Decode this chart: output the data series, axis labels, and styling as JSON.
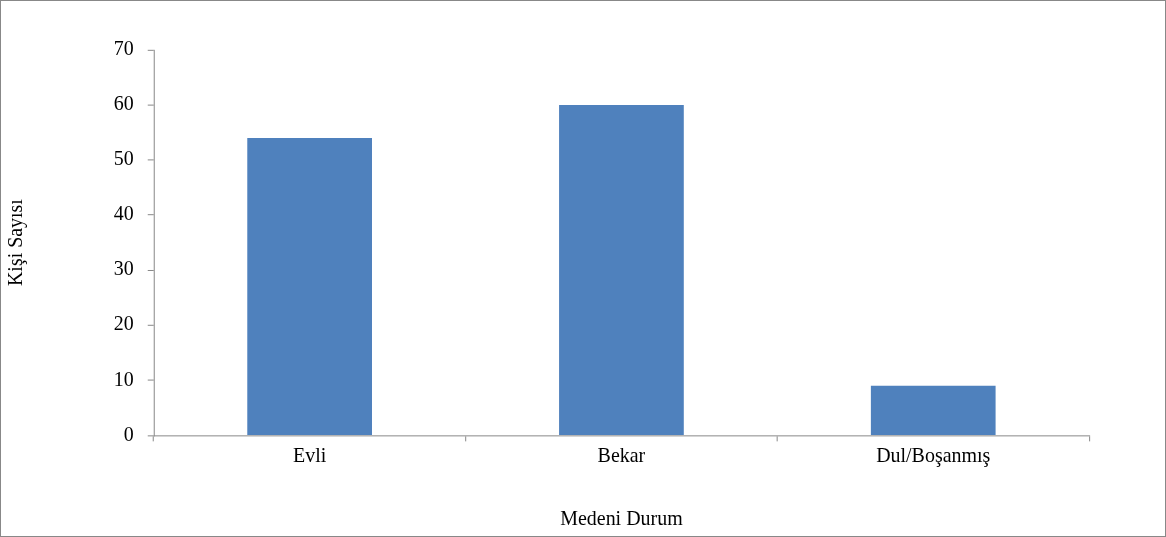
{
  "chart_data": {
    "type": "bar",
    "xlabel": "Medeni Durum",
    "ylabel": "Kişi Sayısı",
    "categories": [
      "Evli",
      "Bekar",
      "Dul/Boşanmış"
    ],
    "values": [
      54,
      60,
      9
    ],
    "color": "#4f81bd",
    "ylim": [
      0,
      70
    ],
    "yticks": [
      0,
      10,
      20,
      30,
      40,
      50,
      60,
      70
    ],
    "grid": false,
    "legend": false
  }
}
